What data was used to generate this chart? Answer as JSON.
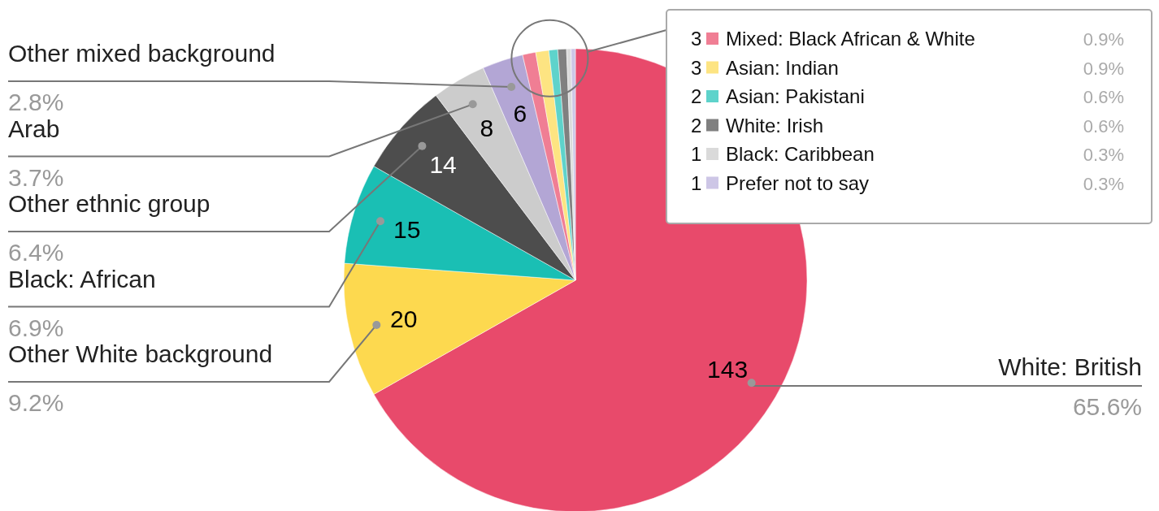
{
  "chart_data": {
    "type": "pie",
    "categories": [
      "White: British",
      "Other White background",
      "Black: African",
      "Other ethnic group",
      "Arab",
      "Other mixed background",
      "Mixed: Black African & White",
      "Asian: Indian",
      "Asian: Pakistani",
      "White: Irish",
      "Black: Caribbean",
      "Prefer not to say"
    ],
    "values": [
      65.6,
      9.2,
      6.9,
      6.4,
      3.7,
      2.8,
      0.9,
      0.9,
      0.6,
      0.6,
      0.3,
      0.3
    ],
    "value_labels": [
      "65.6%",
      "9.2%",
      "6.9%",
      "6.4%",
      "3.7%",
      "2.8%",
      "0.9%",
      "0.9%",
      "0.6%",
      "0.6%",
      "0.3%",
      "0.3%"
    ],
    "legend": "top right",
    "annotations": [
      "143",
      "20",
      "15",
      "14",
      "8",
      "6",
      "3",
      "3",
      "2",
      "2",
      "1",
      "1"
    ],
    "colors": [
      "#e84a6b",
      "#fdd94f",
      "#1abfb4",
      "#4d4d4d",
      "#cccccc",
      "#b3a6d5",
      "#f07e94",
      "#fde482",
      "#5ed3cb",
      "#808080",
      "#dadada",
      "#cdc6e6"
    ]
  }
}
